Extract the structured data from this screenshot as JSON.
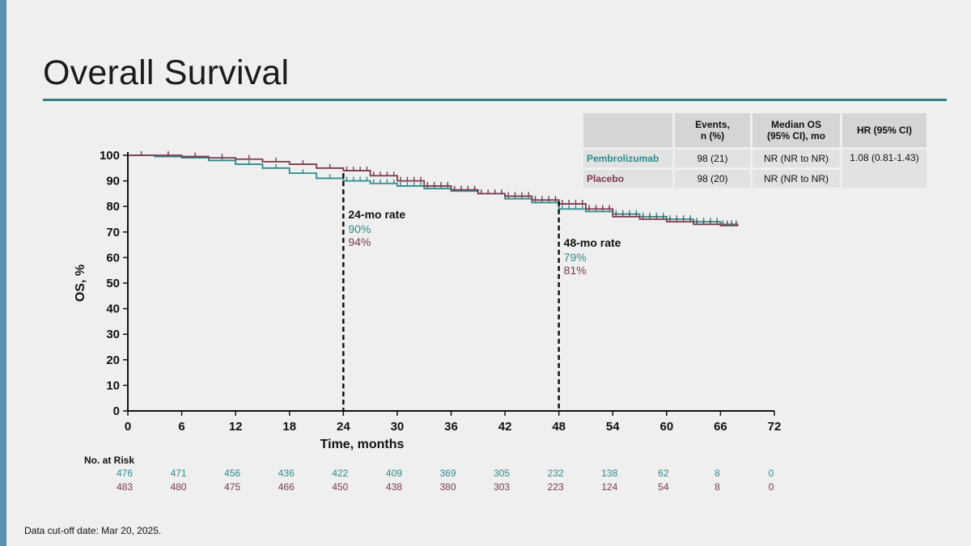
{
  "slide": {
    "title": "Overall Survival",
    "footnote": "Data cut-off date: Mar 20, 2025."
  },
  "colors": {
    "pembrolizumab": "#2e8b8e",
    "placebo": "#7b3a4c",
    "accent_rule": "#2f7f86"
  },
  "summary_table": {
    "headers": [
      "",
      "Events,\nn (%)",
      "Median OS\n(95% CI), mo",
      "HR (95% CI)"
    ],
    "rows": [
      {
        "arm": "Pembrolizumab",
        "events": "98 (21)",
        "median_os": "NR (NR to NR)",
        "hr": "1.08 (0.81-1.43)"
      },
      {
        "arm": "Placebo",
        "events": "98 (20)",
        "median_os": "NR (NR to NR)",
        "hr": ""
      }
    ]
  },
  "chart_data": {
    "type": "line",
    "subtype": "kaplan-meier",
    "xlabel": "Time, months",
    "ylabel": "OS, %",
    "xlim": [
      0,
      72
    ],
    "ylim": [
      0,
      100
    ],
    "x_ticks": [
      0,
      6,
      12,
      18,
      24,
      30,
      36,
      42,
      48,
      54,
      60,
      66,
      72
    ],
    "y_ticks": [
      0,
      10,
      20,
      30,
      40,
      50,
      60,
      70,
      80,
      90,
      100
    ],
    "grid": false,
    "series": [
      {
        "name": "Pembrolizumab",
        "points": [
          [
            0,
            100
          ],
          [
            3,
            99.5
          ],
          [
            6,
            99
          ],
          [
            9,
            98
          ],
          [
            12,
            96.5
          ],
          [
            15,
            95
          ],
          [
            18,
            93
          ],
          [
            21,
            91
          ],
          [
            24,
            90
          ],
          [
            27,
            89
          ],
          [
            30,
            88
          ],
          [
            33,
            87
          ],
          [
            36,
            86
          ],
          [
            39,
            85
          ],
          [
            42,
            83
          ],
          [
            45,
            81.5
          ],
          [
            48,
            79
          ],
          [
            51,
            78
          ],
          [
            54,
            77
          ],
          [
            57,
            76
          ],
          [
            60,
            75
          ],
          [
            63,
            74
          ],
          [
            66,
            73
          ],
          [
            68,
            73
          ]
        ]
      },
      {
        "name": "Placebo",
        "points": [
          [
            0,
            100
          ],
          [
            3,
            100
          ],
          [
            6,
            99.5
          ],
          [
            9,
            99
          ],
          [
            12,
            98.5
          ],
          [
            15,
            97.5
          ],
          [
            18,
            96.5
          ],
          [
            21,
            95
          ],
          [
            24,
            94
          ],
          [
            27,
            92
          ],
          [
            30,
            90
          ],
          [
            33,
            88
          ],
          [
            36,
            86.5
          ],
          [
            39,
            85
          ],
          [
            42,
            84
          ],
          [
            45,
            82.5
          ],
          [
            48,
            81
          ],
          [
            51,
            79
          ],
          [
            54,
            76
          ],
          [
            57,
            75
          ],
          [
            60,
            74
          ],
          [
            63,
            73
          ],
          [
            66,
            72.5
          ],
          [
            68,
            72.5
          ]
        ]
      }
    ],
    "reference_lines": [
      {
        "x": 24,
        "label": "24-mo rate",
        "values": [
          "90%",
          "94%"
        ]
      },
      {
        "x": 48,
        "label": "48-mo rate",
        "values": [
          "79%",
          "81%"
        ]
      }
    ],
    "risk_table": {
      "label": "No. at Risk",
      "times": [
        0,
        6,
        12,
        18,
        24,
        30,
        36,
        42,
        48,
        54,
        60,
        66,
        72
      ],
      "rows": [
        {
          "name": "Pembrolizumab",
          "values": [
            "476",
            "471",
            "456",
            "436",
            "422",
            "409",
            "369",
            "305",
            "232",
            "138",
            "62",
            "8",
            "0"
          ]
        },
        {
          "name": "Placebo",
          "values": [
            "483",
            "480",
            "475",
            "466",
            "450",
            "438",
            "380",
            "303",
            "223",
            "124",
            "54",
            "8",
            "0"
          ]
        }
      ]
    }
  }
}
